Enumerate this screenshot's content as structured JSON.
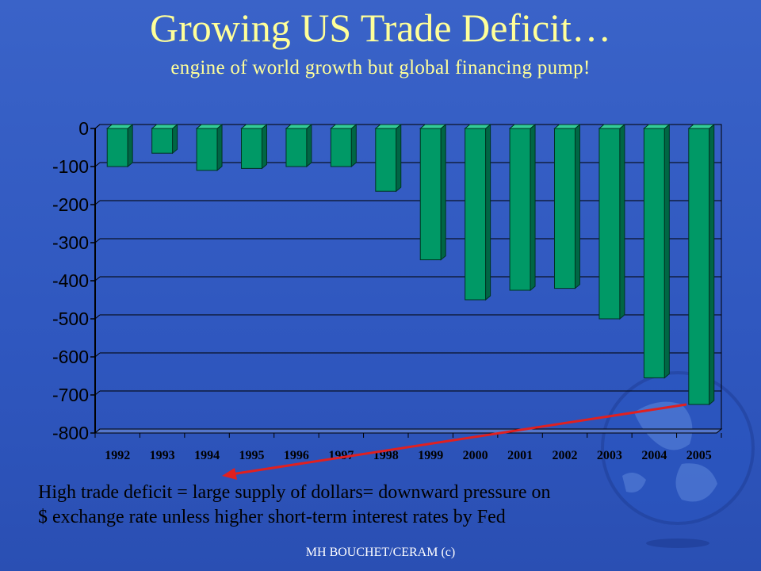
{
  "slide": {
    "title": "Growing US Trade Deficit…",
    "subtitle": "engine of world growth but global financing pump!",
    "note_line1": "High trade deficit = large supply of dollars= downward pressure on",
    "note_line2": "$ exchange rate unless higher short-term interest rates by Fed",
    "footer": "MH BOUCHET/CERAM (c)"
  },
  "colors": {
    "background": "#3366cc",
    "title": "#ffff99",
    "bar_front": "#009966",
    "bar_top": "#33cc99",
    "bar_side": "#006644",
    "arrow": "#e02020",
    "grid": "#000000"
  },
  "chart_data": {
    "type": "bar",
    "title": "",
    "xlabel": "",
    "ylabel": "",
    "categories": [
      "1992",
      "1993",
      "1994",
      "1995",
      "1996",
      "1997",
      "1998",
      "1999",
      "2000",
      "2001",
      "2002",
      "2003",
      "2004",
      "2005"
    ],
    "values": [
      -100,
      -65,
      -110,
      -105,
      -100,
      -100,
      -165,
      -345,
      -450,
      -425,
      -420,
      -500,
      -655,
      -725
    ],
    "ylim": [
      -800,
      0
    ],
    "yticks": [
      0,
      -100,
      -200,
      -300,
      -400,
      -500,
      -600,
      -700,
      -800
    ],
    "grid": true,
    "style": "3d"
  }
}
